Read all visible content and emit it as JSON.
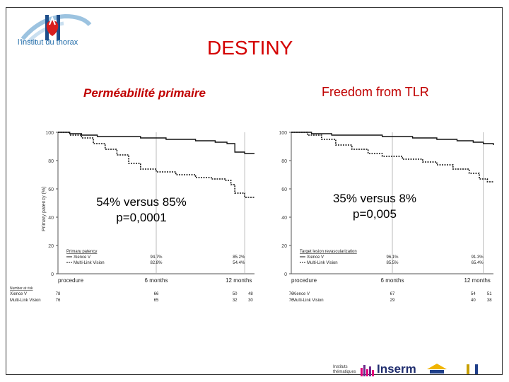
{
  "header": {
    "logo_text": "l'institut du thorax",
    "title": "DESTINY"
  },
  "left_panel": {
    "subtitle": "Perméabilité primaire",
    "overlay_line1": "54% versus 85%",
    "overlay_line2": "p=0,0001"
  },
  "right_panel": {
    "subtitle": "Freedom from TLR",
    "overlay_line1": "35% versus 8%",
    "overlay_line2": "p=0,005"
  },
  "footer": {
    "inserm": "Inserm",
    "small1": "Instituts",
    "small2": "thématiques"
  },
  "colors": {
    "title": "#d40000",
    "subtitle": "#c00000",
    "logo": "#1e6aa8"
  },
  "chart_data": [
    {
      "type": "line",
      "ylabel": "Primary patency (%)",
      "ylim": [
        0,
        100
      ],
      "yticks": [
        0,
        20,
        40,
        60,
        80,
        100
      ],
      "xticks": [
        "procedure",
        "6 months",
        "12 months"
      ],
      "legend_title": "Primary patency",
      "series": [
        {
          "name": "Xience V",
          "style": "solid",
          "x": [
            0,
            0.06,
            0.12,
            0.2,
            0.3,
            0.42,
            0.55,
            0.7,
            0.8,
            0.86,
            0.9,
            0.95,
            1.0
          ],
          "y": [
            100,
            99,
            98,
            97,
            97,
            96,
            95,
            94,
            93,
            92,
            86,
            85,
            85
          ]
        },
        {
          "name": "Multi-Link Vision",
          "style": "dashed",
          "x": [
            0,
            0.06,
            0.12,
            0.18,
            0.24,
            0.3,
            0.36,
            0.42,
            0.5,
            0.6,
            0.7,
            0.78,
            0.85,
            0.88,
            0.9,
            0.95,
            1.0
          ],
          "y": [
            100,
            98,
            96,
            92,
            88,
            84,
            78,
            74,
            72,
            70,
            68,
            67,
            66,
            63,
            57,
            54,
            54
          ]
        }
      ],
      "row_values": [
        {
          "name": "Xience V",
          "m6": "94.7%",
          "m12": "85.2%"
        },
        {
          "name": "Multi-Link Vision",
          "m6": "82.8%",
          "m12": "54.4%"
        }
      ],
      "at_risk_title": "Number at risk",
      "at_risk": [
        {
          "name": "Xience V",
          "values": [
            "78",
            "66",
            "50",
            "48"
          ]
        },
        {
          "name": "Multi-Link Vision",
          "values": [
            "76",
            "65",
            "32",
            "30"
          ]
        }
      ]
    },
    {
      "type": "line",
      "ylim": [
        0,
        100
      ],
      "yticks": [
        0,
        20,
        40,
        60,
        80,
        100
      ],
      "xticks": [
        "procedure",
        "6 months",
        "12 months"
      ],
      "legend_title": "Target lesion revascularization",
      "series": [
        {
          "name": "Xience V",
          "style": "solid",
          "x": [
            0,
            0.1,
            0.2,
            0.3,
            0.45,
            0.6,
            0.72,
            0.82,
            0.9,
            0.95,
            1.0
          ],
          "y": [
            100,
            99,
            98,
            98,
            97,
            96,
            95,
            94,
            93,
            92,
            91
          ]
        },
        {
          "name": "Multi-Link Vision",
          "style": "dashed",
          "x": [
            0,
            0.08,
            0.15,
            0.22,
            0.3,
            0.38,
            0.45,
            0.55,
            0.65,
            0.72,
            0.8,
            0.88,
            0.93,
            0.97,
            1.0
          ],
          "y": [
            100,
            98,
            95,
            91,
            88,
            85,
            83,
            81,
            79,
            77,
            74,
            71,
            67,
            65,
            65
          ]
        }
      ],
      "row_values": [
        {
          "name": "Xience V",
          "m6": "96.1%",
          "m12": "91.3%"
        },
        {
          "name": "Multi-Link Vision",
          "m6": "85.5%",
          "m12": "65.4%"
        }
      ],
      "at_risk": [
        {
          "name": "Xience V",
          "values": [
            "76",
            "67",
            "54",
            "51"
          ]
        },
        {
          "name": "Multi-Link Vision",
          "values": [
            "76",
            "29",
            "40",
            "38"
          ]
        }
      ]
    }
  ]
}
